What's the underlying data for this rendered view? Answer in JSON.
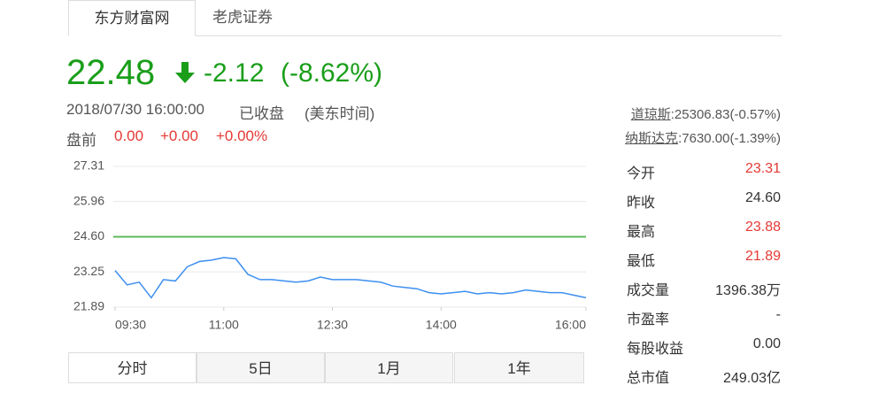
{
  "tabs": [
    "东方财富网",
    "老虎证券"
  ],
  "quote": {
    "price": "22.48",
    "change": "-2.12",
    "change_pct": "(-8.62%)",
    "datetime": "2018/07/30 16:00:00",
    "status": "已收盘",
    "timezone": "(美东时间)",
    "premarket": {
      "label": "盘前",
      "price": "0.00",
      "change": "+0.00",
      "change_pct": "+0.00%"
    }
  },
  "indices": [
    {
      "name": "道琼斯",
      "value": ":25306.83(-0.57%)"
    },
    {
      "name": "纳斯达克",
      "value": ":7630.00(-1.39%)"
    }
  ],
  "stats": [
    {
      "label": "今开",
      "value": "23.31",
      "color": "#e53935"
    },
    {
      "label": "昨收",
      "value": "24.60",
      "color": "#333333"
    },
    {
      "label": "最高",
      "value": "23.88",
      "color": "#e53935"
    },
    {
      "label": "最低",
      "value": "21.89",
      "color": "#e53935"
    },
    {
      "label": "成交量",
      "value": "1396.38万",
      "color": "#333333"
    },
    {
      "label": "市盈率",
      "value": "-",
      "color": "#333333"
    },
    {
      "label": "每股收益",
      "value": "0.00",
      "color": "#333333"
    },
    {
      "label": "总市值",
      "value": "249.03亿",
      "color": "#333333"
    }
  ],
  "period_tabs": [
    "分时",
    "5日",
    "1月",
    "1年"
  ],
  "chart_data": {
    "type": "line",
    "color": "#3d8ff0",
    "reference_line": 24.6,
    "reference_color": "#5cb85c",
    "grid": true,
    "x": [
      "09:30",
      "09:40",
      "09:50",
      "10:00",
      "10:10",
      "10:20",
      "10:30",
      "10:40",
      "10:50",
      "11:00",
      "11:10",
      "11:20",
      "11:30",
      "11:40",
      "11:50",
      "12:00",
      "12:10",
      "12:20",
      "12:30",
      "12:40",
      "12:50",
      "13:00",
      "13:10",
      "13:20",
      "13:30",
      "13:40",
      "13:50",
      "14:00",
      "14:10",
      "14:20",
      "14:30",
      "14:40",
      "14:50",
      "15:00",
      "15:10",
      "15:20",
      "15:30",
      "15:40",
      "15:50",
      "16:00"
    ],
    "values": [
      23.3,
      22.75,
      22.85,
      22.25,
      22.95,
      22.9,
      23.45,
      23.65,
      23.7,
      23.8,
      23.75,
      23.15,
      22.95,
      22.95,
      22.9,
      22.85,
      22.9,
      23.05,
      22.95,
      22.95,
      22.95,
      22.9,
      22.85,
      22.7,
      22.65,
      22.6,
      22.45,
      22.4,
      22.45,
      22.5,
      22.4,
      22.45,
      22.4,
      22.45,
      22.55,
      22.5,
      22.45,
      22.45,
      22.35,
      22.25
    ],
    "xticks": [
      "09:30",
      "11:00",
      "12:30",
      "14:00",
      "16:00"
    ],
    "ylim": [
      21.89,
      27.31
    ],
    "yticks": [
      21.89,
      23.25,
      {
        "value": 24.6,
        "label": "24.60"
      },
      25.96,
      27.31
    ]
  }
}
